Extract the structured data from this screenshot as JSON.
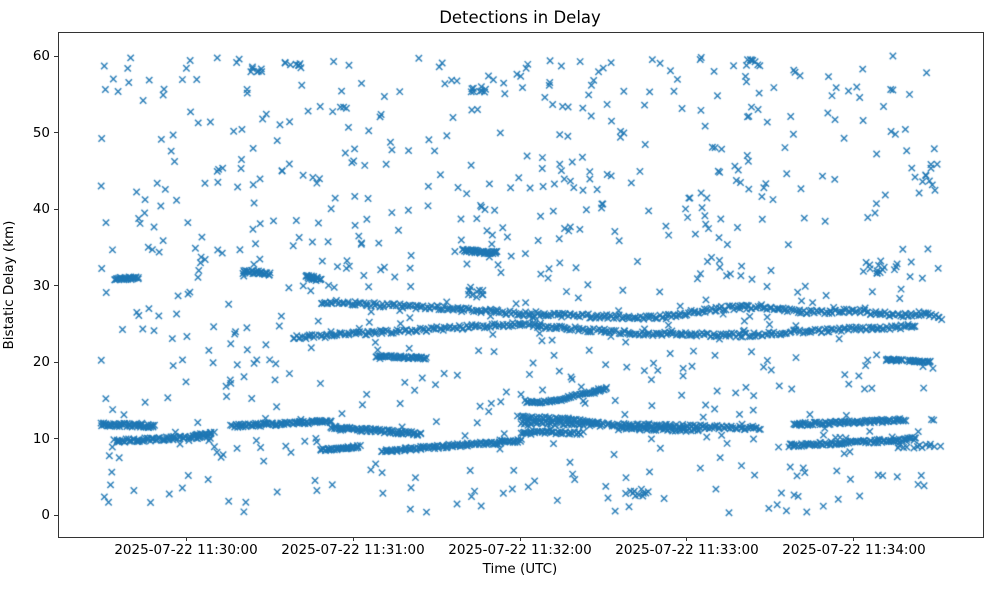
{
  "chart_data": {
    "type": "scatter",
    "title": "Detections in Delay",
    "xlabel": "Time (UTC)",
    "ylabel": "Bistatic Delay (km)",
    "marker": "x",
    "marker_color": "#1f77b4",
    "marker_size": 7,
    "grid": false,
    "legend": null,
    "x_axis": {
      "epoch": "2025-07-22 11:30:00",
      "unit_of_t": "seconds relative to 11:30:00 UTC",
      "lim": [
        -46,
        286
      ],
      "ticks": [
        {
          "t": 0,
          "label": "2025-07-22 11:30:00"
        },
        {
          "t": 60,
          "label": "2025-07-22 11:31:00"
        },
        {
          "t": 120,
          "label": "2025-07-22 11:32:00"
        },
        {
          "t": 180,
          "label": "2025-07-22 11:33:00"
        },
        {
          "t": 240,
          "label": "2025-07-22 11:34:00"
        }
      ]
    },
    "y_axis": {
      "lim": [
        -2.7,
        63.2
      ],
      "ticks": [
        {
          "d": 0,
          "label": "0"
        },
        {
          "d": 10,
          "label": "10"
        },
        {
          "d": 20,
          "label": "20"
        },
        {
          "d": 30,
          "label": "30"
        },
        {
          "d": 40,
          "label": "40"
        },
        {
          "d": 50,
          "label": "50"
        },
        {
          "d": 60,
          "label": "60"
        }
      ]
    },
    "tracks": [
      {
        "pts": [
          [
            -31,
            12.05
          ],
          [
            -12,
            11.8
          ]
        ],
        "n": 55,
        "jt": 0.5,
        "jd": 0.22
      },
      {
        "pts": [
          [
            -26,
            9.85
          ],
          [
            -5,
            10.2
          ],
          [
            9,
            10.8
          ]
        ],
        "n": 80,
        "jt": 0.5,
        "jd": 0.22
      },
      {
        "pts": [
          [
            16,
            11.8
          ],
          [
            52,
            12.45
          ]
        ],
        "n": 85,
        "jt": 0.5,
        "jd": 0.22
      },
      {
        "pts": [
          [
            52,
            11.6
          ],
          [
            84,
            10.8
          ]
        ],
        "n": 75,
        "jt": 0.5,
        "jd": 0.22
      },
      {
        "pts": [
          [
            48,
            8.7
          ],
          [
            62,
            9.1
          ]
        ],
        "n": 38,
        "jt": 0.4,
        "jd": 0.18
      },
      {
        "pts": [
          [
            70,
            8.55
          ],
          [
            120,
            9.9
          ]
        ],
        "n": 110,
        "jt": 0.5,
        "jd": 0.22
      },
      {
        "pts": [
          [
            119,
            13.1
          ],
          [
            148,
            12.35
          ]
        ],
        "n": 45,
        "jt": 0.4,
        "jd": 0.18
      },
      {
        "pts": [
          [
            120,
            12.25
          ],
          [
            163,
            11.9
          ],
          [
            206,
            11.55
          ]
        ],
        "n": 150,
        "jt": 0.5,
        "jd": 0.25
      },
      {
        "pts": [
          [
            120,
            11.05
          ],
          [
            142,
            10.9
          ]
        ],
        "n": 40,
        "jt": 0.4,
        "jd": 0.18
      },
      {
        "pts": [
          [
            155,
            11.5
          ],
          [
            184,
            11.25
          ]
        ],
        "n": 45,
        "jt": 0.4,
        "jd": 0.18
      },
      {
        "pts": [
          [
            218,
            12.0
          ],
          [
            258,
            12.6
          ]
        ],
        "n": 90,
        "jt": 0.4,
        "jd": 0.22
      },
      {
        "pts": [
          [
            216,
            9.3
          ],
          [
            245,
            9.75
          ],
          [
            262,
            10.15
          ]
        ],
        "n": 95,
        "jt": 0.4,
        "jd": 0.22
      },
      {
        "pts": [
          [
            256,
            9.05
          ],
          [
            270,
            9.2
          ]
        ],
        "n": 10,
        "jt": 0.8,
        "jd": 0.3
      },
      {
        "pts": [
          [
            38,
            23.4
          ],
          [
            80,
            24.35
          ],
          [
            120,
            25.15
          ],
          [
            158,
            23.95
          ],
          [
            200,
            23.7
          ],
          [
            240,
            24.55
          ],
          [
            262,
            24.85
          ]
        ],
        "n": 340,
        "jt": 0.5,
        "jd": 0.28
      },
      {
        "pts": [
          [
            48,
            28.1
          ],
          [
            60,
            27.8
          ],
          [
            95,
            27.2
          ],
          [
            125,
            26.35
          ],
          [
            168,
            26.0
          ],
          [
            192,
            27.2
          ],
          [
            205,
            27.45
          ],
          [
            222,
            26.7
          ],
          [
            240,
            26.9
          ],
          [
            256,
            26.3
          ],
          [
            266,
            26.6
          ],
          [
            271,
            25.7
          ]
        ],
        "n": 350,
        "jt": 0.5,
        "jd": 0.28
      },
      {
        "pts": [
          [
            68,
            20.95
          ],
          [
            86,
            20.7
          ]
        ],
        "n": 48,
        "jt": 0.4,
        "jd": 0.16
      },
      {
        "pts": [
          [
            251,
            20.5
          ],
          [
            257,
            20.4
          ]
        ],
        "n": 18,
        "jt": 0.3,
        "jd": 0.14
      },
      {
        "pts": [
          [
            259,
            20.35
          ],
          [
            267,
            20.2
          ]
        ],
        "n": 22,
        "jt": 0.3,
        "jd": 0.14
      },
      {
        "pts": [
          [
            -26,
            31.05
          ],
          [
            -17.5,
            31.15
          ]
        ],
        "n": 28,
        "jt": 0.3,
        "jd": 0.2
      },
      {
        "pts": [
          [
            20.5,
            32.1
          ],
          [
            30,
            31.7
          ]
        ],
        "n": 26,
        "jt": 0.3,
        "jd": 0.2
      },
      {
        "pts": [
          [
            42.5,
            31.3
          ],
          [
            48,
            31.0
          ]
        ],
        "n": 20,
        "jt": 0.3,
        "jd": 0.25
      },
      {
        "pts": [
          [
            99,
            34.75
          ],
          [
            111.5,
            34.45
          ]
        ],
        "n": 42,
        "jt": 0.3,
        "jd": 0.2
      },
      {
        "pts": [
          [
            121.5,
            15.05
          ],
          [
            127,
            14.85
          ],
          [
            134,
            15.25
          ],
          [
            141,
            15.9
          ],
          [
            151,
            16.7
          ]
        ],
        "n": 62,
        "jt": 0.3,
        "jd": 0.16
      }
    ],
    "clusters": [
      {
        "t": 162,
        "d": 3.0,
        "st": 6,
        "sd": 0.6,
        "n": 11
      },
      {
        "t": 250,
        "d": 32.4,
        "st": 7,
        "sd": 0.8,
        "n": 13
      },
      {
        "t": 265,
        "d": 45.0,
        "st": 4,
        "sd": 2.4,
        "n": 9
      },
      {
        "t": 104,
        "d": 55.7,
        "st": 4,
        "sd": 0.5,
        "n": 9
      },
      {
        "t": 203,
        "d": 59.3,
        "st": 3.5,
        "sd": 0.4,
        "n": 8
      },
      {
        "t": 25,
        "d": 58.6,
        "st": 2.5,
        "sd": 0.5,
        "n": 7
      },
      {
        "t": 38,
        "d": 59.1,
        "st": 3,
        "sd": 0.5,
        "n": 7
      },
      {
        "t": 105,
        "d": 29.3,
        "st": 4,
        "sd": 0.7,
        "n": 10
      },
      {
        "t": 6,
        "d": 10.6,
        "st": 3,
        "sd": 0.5,
        "n": 10
      }
    ],
    "noise": {
      "n": 730,
      "t_range": [
        -31,
        270
      ],
      "d_range": [
        0.4,
        60.3
      ],
      "seed": 7
    }
  }
}
